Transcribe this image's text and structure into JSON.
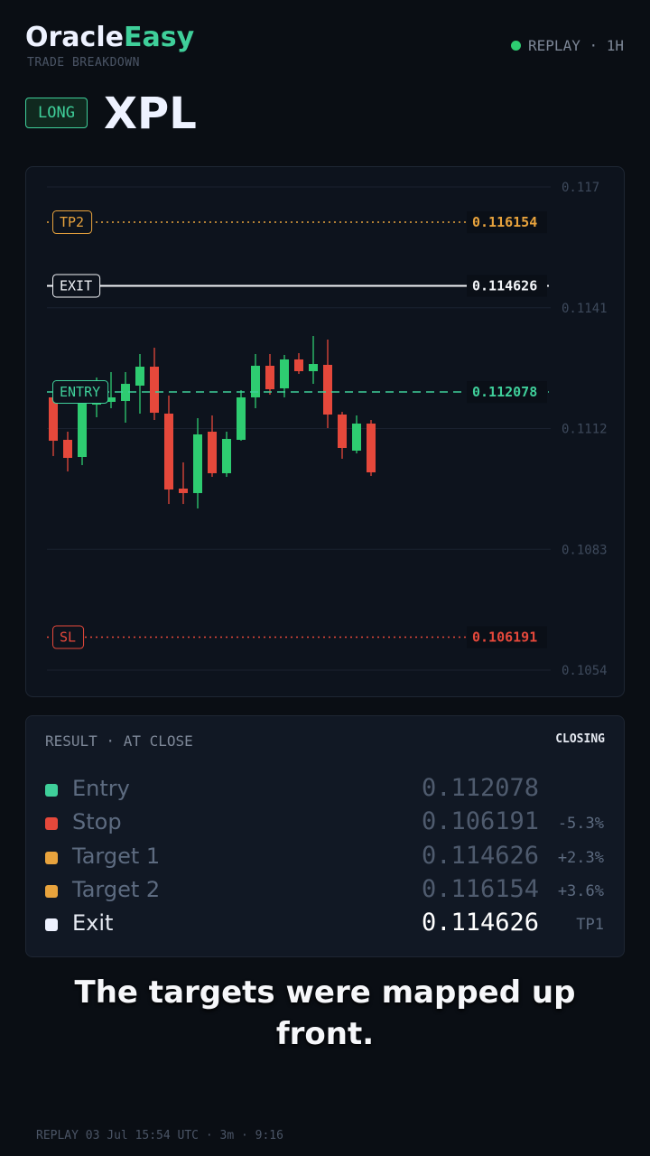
{
  "header": {
    "brand_a": "Oracle",
    "brand_b": "Easy",
    "subtitle": "TRADE BREAKDOWN",
    "status": "REPLAY · 1H"
  },
  "trade": {
    "side": "LONG",
    "symbol": "XPL"
  },
  "chart_data": {
    "type": "candlestick",
    "ylim": [
      0.1054,
      0.117
    ],
    "yticks": [
      0.117,
      0.1141,
      0.1112,
      0.1083,
      0.1054
    ],
    "grid": true,
    "up_color": "#2ecc71",
    "down_color": "#e5483b",
    "candles": [
      {
        "open": 0.111948,
        "high": 0.112056,
        "low": 0.110539,
        "close": 0.110907
      },
      {
        "open": 0.110929,
        "high": 0.111124,
        "low": 0.11017,
        "close": 0.110495
      },
      {
        "open": 0.110517,
        "high": 0.111948,
        "low": 0.110322,
        "close": 0.111796
      },
      {
        "open": 0.111774,
        "high": 0.112425,
        "low": 0.111471,
        "close": 0.11184
      },
      {
        "open": 0.11184,
        "high": 0.112555,
        "low": 0.111688,
        "close": 0.111948
      },
      {
        "open": 0.111861,
        "high": 0.112555,
        "low": 0.111341,
        "close": 0.112273
      },
      {
        "open": 0.11223,
        "high": 0.112989,
        "low": 0.111558,
        "close": 0.112685
      },
      {
        "open": 0.112685,
        "high": 0.11314,
        "low": 0.111406,
        "close": 0.111579
      },
      {
        "open": 0.111558,
        "high": 0.111991,
        "low": 0.109389,
        "close": 0.109736
      },
      {
        "open": 0.109758,
        "high": 0.110387,
        "low": 0.109389,
        "close": 0.10965
      },
      {
        "open": 0.10965,
        "high": 0.111449,
        "low": 0.109281,
        "close": 0.111059
      },
      {
        "open": 0.111124,
        "high": 0.111514,
        "low": 0.11004,
        "close": 0.110127
      },
      {
        "open": 0.110127,
        "high": 0.111124,
        "low": 0.11004,
        "close": 0.110951
      },
      {
        "open": 0.110929,
        "high": 0.112121,
        "low": 0.110907,
        "close": 0.111948
      },
      {
        "open": 0.111948,
        "high": 0.112989,
        "low": 0.111688,
        "close": 0.112707
      },
      {
        "open": 0.112707,
        "high": 0.112989,
        "low": 0.112013,
        "close": 0.112143
      },
      {
        "open": 0.112165,
        "high": 0.112967,
        "low": 0.111948,
        "close": 0.112859
      },
      {
        "open": 0.112859,
        "high": 0.11301,
        "low": 0.112512,
        "close": 0.112577
      },
      {
        "open": 0.112577,
        "high": 0.113422,
        "low": 0.112273,
        "close": 0.11275
      },
      {
        "open": 0.112729,
        "high": 0.113336,
        "low": 0.111211,
        "close": 0.111536
      },
      {
        "open": 0.111536,
        "high": 0.1116,
        "low": 0.110474,
        "close": 0.110734
      },
      {
        "open": 0.110669,
        "high": 0.111514,
        "low": 0.110604,
        "close": 0.111319
      },
      {
        "open": 0.111319,
        "high": 0.111406,
        "low": 0.110062,
        "close": 0.110148
      }
    ],
    "levels": [
      {
        "label": "TP2",
        "value": 0.116154,
        "color": "#e8a33d",
        "style": "dotted"
      },
      {
        "label": "EXIT",
        "value": 0.114626,
        "color": "#f2f4f8",
        "style": "solid"
      },
      {
        "label": "ENTRY",
        "value": 0.112078,
        "color": "#3fcf9a",
        "style": "dashed"
      },
      {
        "label": "SL",
        "value": 0.106191,
        "color": "#e5483b",
        "style": "dotted"
      }
    ]
  },
  "result": {
    "title": "RESULT · AT CLOSE",
    "status": "CLOSING",
    "rows": [
      {
        "name": "Entry",
        "value": 0.112078,
        "color": "#3fcf9a"
      },
      {
        "name": "Stop",
        "value": 0.106191,
        "change": "-5.3%",
        "color": "#e5483b"
      },
      {
        "name": "Target 1",
        "value": 0.114626,
        "change": "+2.3%",
        "color": "#e8a33d"
      },
      {
        "name": "Target 2",
        "value": 0.116154,
        "change": "+3.6%",
        "color": "#e8a33d"
      },
      {
        "name": "Exit",
        "value": 0.114626,
        "change": "TP1",
        "color": "#eef2ff",
        "active": true
      }
    ]
  },
  "caption": "The targets were mapped up front.",
  "footer": "REPLAY 03 Jul 15:54 UTC · 3m · 9:16"
}
